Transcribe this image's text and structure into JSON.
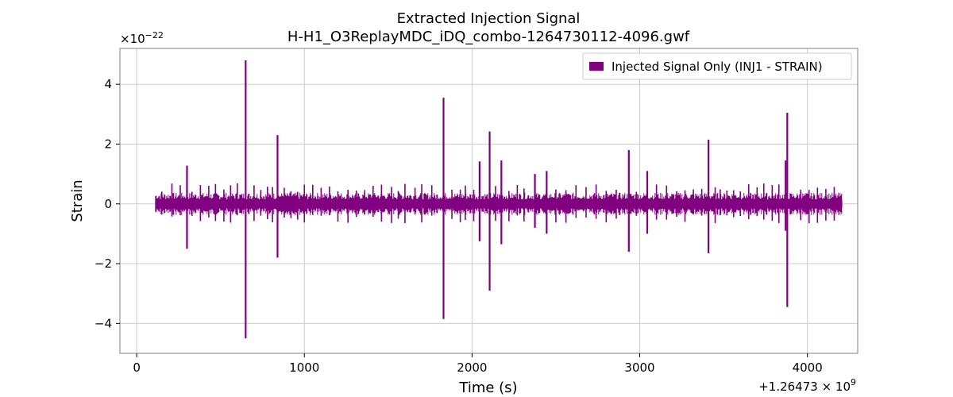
{
  "chart_data": {
    "type": "line",
    "title": "Extracted Injection Signal",
    "subtitle": "H-H1_O3ReplayMDC_iDQ_combo-1264730112-4096.gwf",
    "xlabel": "Time (s)",
    "ylabel": "Strain",
    "x_offset_label": "+1.26473 × 10",
    "x_offset_exponent": "9",
    "y_multiplier_label": "×10",
    "y_multiplier_exponent": "−22",
    "xlim": [
      -100,
      4300
    ],
    "ylim": [
      -5.0,
      5.2
    ],
    "x_ticks": [
      0,
      1000,
      2000,
      3000,
      4000
    ],
    "x_tick_labels": [
      "0",
      "1000",
      "2000",
      "3000",
      "4000"
    ],
    "y_ticks": [
      -4,
      -2,
      0,
      2,
      4
    ],
    "y_tick_labels": [
      "−4",
      "−2",
      "0",
      "2",
      "4"
    ],
    "grid": true,
    "legend_position": "top-right",
    "series": [
      {
        "name": "Injected Signal Only (INJ1 - STRAIN)",
        "color": "#800080",
        "x_range": [
          112,
          4208
        ],
        "noise_band": 0.25,
        "spikes": [
          {
            "x": 300,
            "pos": 1.28,
            "neg": -1.5
          },
          {
            "x": 650,
            "pos": 4.8,
            "neg": -4.5
          },
          {
            "x": 840,
            "pos": 2.3,
            "neg": -1.8
          },
          {
            "x": 1830,
            "pos": 3.55,
            "neg": -3.85
          },
          {
            "x": 2045,
            "pos": 1.42,
            "neg": -1.25
          },
          {
            "x": 2105,
            "pos": 2.42,
            "neg": -2.9
          },
          {
            "x": 2175,
            "pos": 1.45,
            "neg": -1.35
          },
          {
            "x": 2375,
            "pos": 1.0,
            "neg": -0.8
          },
          {
            "x": 2445,
            "pos": 1.1,
            "neg": -1.0
          },
          {
            "x": 2935,
            "pos": 1.8,
            "neg": -1.6
          },
          {
            "x": 3045,
            "pos": 1.1,
            "neg": -1.0
          },
          {
            "x": 3410,
            "pos": 2.15,
            "neg": -1.65
          },
          {
            "x": 3870,
            "pos": 1.45,
            "neg": -0.9
          },
          {
            "x": 3880,
            "pos": 3.05,
            "neg": -3.45
          }
        ],
        "small_spikes": [
          150,
          210,
          260,
          330,
          380,
          430,
          470,
          520,
          560,
          600,
          700,
          740,
          780,
          810,
          880,
          920,
          960,
          1000,
          1050,
          1100,
          1150,
          1200,
          1260,
          1310,
          1360,
          1410,
          1460,
          1520,
          1560,
          1600,
          1660,
          1700,
          1760,
          1880,
          1930,
          1960,
          2010,
          2140,
          2220,
          2270,
          2310,
          2500,
          2560,
          2620,
          2680,
          2740,
          2800,
          2860,
          2980,
          3100,
          3160,
          3220,
          3270,
          3320,
          3370,
          3450,
          3480,
          3520,
          3560,
          3600,
          3650,
          3700,
          3740,
          3790,
          3830,
          3960,
          4010,
          4060,
          4110,
          4160
        ]
      }
    ]
  }
}
